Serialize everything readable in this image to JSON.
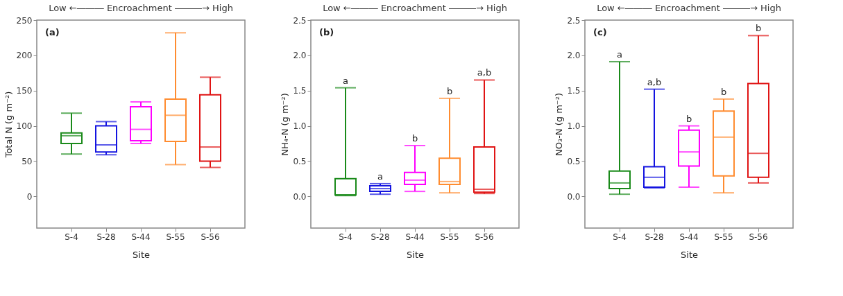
{
  "chart_data": [
    {
      "type": "box",
      "title": "Low ←――― Encroachment ―――→ High",
      "xlabel": "Site",
      "ylabel": "Total N (g m⁻²)",
      "categories": [
        "S-4",
        "S-28",
        "S-44",
        "S-55",
        "S-56"
      ],
      "colors": [
        "#1a8a1a",
        "#1414e0",
        "#ff00ff",
        "#ff8c30",
        "#e01414"
      ],
      "boxes": [
        {
          "low": 60,
          "q1": 75,
          "median": 86,
          "q3": 90,
          "high": 118
        },
        {
          "low": 59,
          "q1": 63,
          "median": 73,
          "q3": 100,
          "high": 106
        },
        {
          "low": 75,
          "q1": 79,
          "median": 95,
          "q3": 127,
          "high": 134
        },
        {
          "low": 45,
          "q1": 78,
          "median": 115,
          "q3": 138,
          "high": 232
        },
        {
          "low": 41,
          "q1": 50,
          "median": 70,
          "q3": 144,
          "high": 169
        }
      ],
      "ylim": [
        -45,
        250
      ],
      "yticks": [
        0,
        50,
        100,
        150,
        200,
        250
      ],
      "annotations": [
        "(a)"
      ],
      "grid": false,
      "legend": false
    },
    {
      "type": "box",
      "title": "Low ←――― Encroachment ―――→ High",
      "xlabel": "Site",
      "ylabel": "NH₄-N (g m⁻²)",
      "categories": [
        "S-4",
        "S-28",
        "S-44",
        "S-55",
        "S-56"
      ],
      "colors": [
        "#1a8a1a",
        "#1414e0",
        "#ff00ff",
        "#ff8c30",
        "#e01414"
      ],
      "boxes": [
        {
          "low": 0.01,
          "q1": 0.02,
          "median": 0.02,
          "q3": 0.25,
          "high": 1.54
        },
        {
          "low": 0.03,
          "q1": 0.07,
          "median": 0.11,
          "q3": 0.15,
          "high": 0.18
        },
        {
          "low": 0.07,
          "q1": 0.17,
          "median": 0.23,
          "q3": 0.34,
          "high": 0.72
        },
        {
          "low": 0.05,
          "q1": 0.17,
          "median": 0.21,
          "q3": 0.54,
          "high": 1.39
        },
        {
          "low": 0.04,
          "q1": 0.06,
          "median": 0.1,
          "q3": 0.7,
          "high": 1.65
        }
      ],
      "ylim": [
        -0.45,
        2.5
      ],
      "yticks": [
        {
          "value": 0,
          "label": "0.0"
        },
        0.5,
        {
          "value": 1,
          "label": "1.0"
        },
        1.5,
        {
          "value": 2,
          "label": "2.0"
        },
        2.5
      ],
      "annotations": [
        "(b)",
        {
          "text": "a",
          "x": "S-4",
          "y": 1.54
        },
        {
          "text": "a",
          "x": "S-28",
          "y": 0.18
        },
        {
          "text": "b",
          "x": "S-44",
          "y": 0.72
        },
        {
          "text": "b",
          "x": "S-55",
          "y": 1.39
        },
        {
          "text": "a,b",
          "x": "S-56",
          "y": 1.65
        }
      ],
      "grid": false,
      "legend": false
    },
    {
      "type": "box",
      "title": "Low ←――― Encroachment ―――→ High",
      "xlabel": "Site",
      "ylabel": "NO₃-N (g m⁻²)",
      "categories": [
        "S-4",
        "S-28",
        "S-44",
        "S-55",
        "S-56"
      ],
      "colors": [
        "#1a8a1a",
        "#1414e0",
        "#ff00ff",
        "#ff8c30",
        "#e01414"
      ],
      "boxes": [
        {
          "low": 0.03,
          "q1": 0.11,
          "median": 0.19,
          "q3": 0.36,
          "high": 1.91
        },
        {
          "low": 0.12,
          "q1": 0.13,
          "median": 0.27,
          "q3": 0.42,
          "high": 1.52
        },
        {
          "low": 0.13,
          "q1": 0.43,
          "median": 0.63,
          "q3": 0.94,
          "high": 1.0
        },
        {
          "low": 0.05,
          "q1": 0.29,
          "median": 0.84,
          "q3": 1.21,
          "high": 1.38
        },
        {
          "low": 0.19,
          "q1": 0.27,
          "median": 0.61,
          "q3": 1.6,
          "high": 2.28
        }
      ],
      "ylim": [
        -0.45,
        2.5
      ],
      "yticks": [
        {
          "value": 0,
          "label": "0.0"
        },
        0.5,
        {
          "value": 1,
          "label": "1.0"
        },
        1.5,
        {
          "value": 2,
          "label": "2.0"
        },
        2.5
      ],
      "annotations": [
        "(c)",
        {
          "text": "a",
          "x": "S-4",
          "y": 1.91
        },
        {
          "text": "a,b",
          "x": "S-28",
          "y": 1.52
        },
        {
          "text": "b",
          "x": "S-44",
          "y": 1.0
        },
        {
          "text": "b",
          "x": "S-55",
          "y": 1.38
        },
        {
          "text": "b",
          "x": "S-56",
          "y": 2.28
        }
      ],
      "grid": false,
      "legend": false
    }
  ]
}
